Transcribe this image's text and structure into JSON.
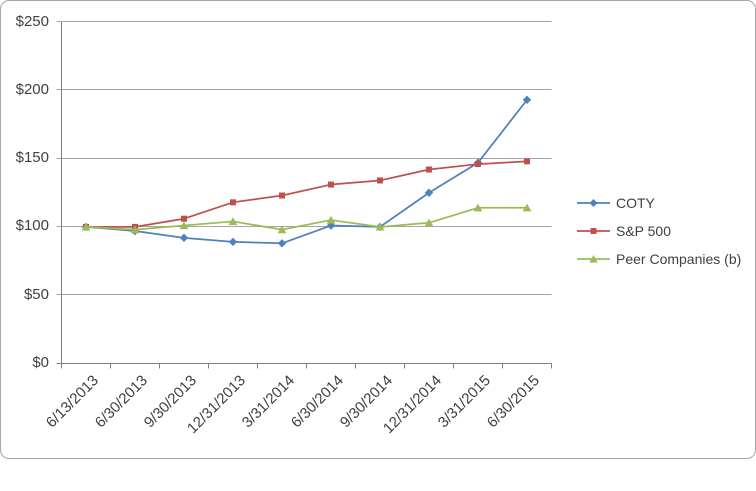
{
  "chart_data": {
    "type": "line",
    "title": "",
    "xlabel": "",
    "ylabel": "",
    "categories": [
      "6/13/2013",
      "6/30/2013",
      "9/30/2013",
      "12/31/2013",
      "3/31/2014",
      "6/30/2014",
      "9/30/2014",
      "12/31/2014",
      "3/31/2015",
      "6/30/2015"
    ],
    "series": [
      {
        "name": "COTY",
        "color": "#4F81BD",
        "marker": "diamond",
        "values": [
          100,
          97,
          92,
          89,
          88,
          101,
          100,
          125,
          147,
          193
        ]
      },
      {
        "name": "S&P 500",
        "color": "#C0504D",
        "marker": "square",
        "values": [
          100,
          100,
          106,
          118,
          123,
          131,
          134,
          142,
          146,
          148
        ]
      },
      {
        "name": "Peer Companies (b)",
        "color": "#9BBB59",
        "marker": "triangle",
        "values": [
          100,
          98,
          101,
          104,
          98,
          105,
          100,
          103,
          114,
          114
        ]
      }
    ],
    "y_axis": {
      "tick_labels": [
        "$250",
        "$200",
        "$150",
        "$100",
        "$50",
        "$0"
      ],
      "min": 0,
      "max": 250,
      "step": 50,
      "currency_format": "$"
    },
    "x_axis": {
      "label_rotation_deg": -45
    },
    "legend_position": "right",
    "grid": true
  },
  "colors": {
    "gridline": "#A6A6A6",
    "axis": "#808080",
    "text": "#404040",
    "border": "#A6A6A6",
    "background": "#FFFFFF"
  }
}
